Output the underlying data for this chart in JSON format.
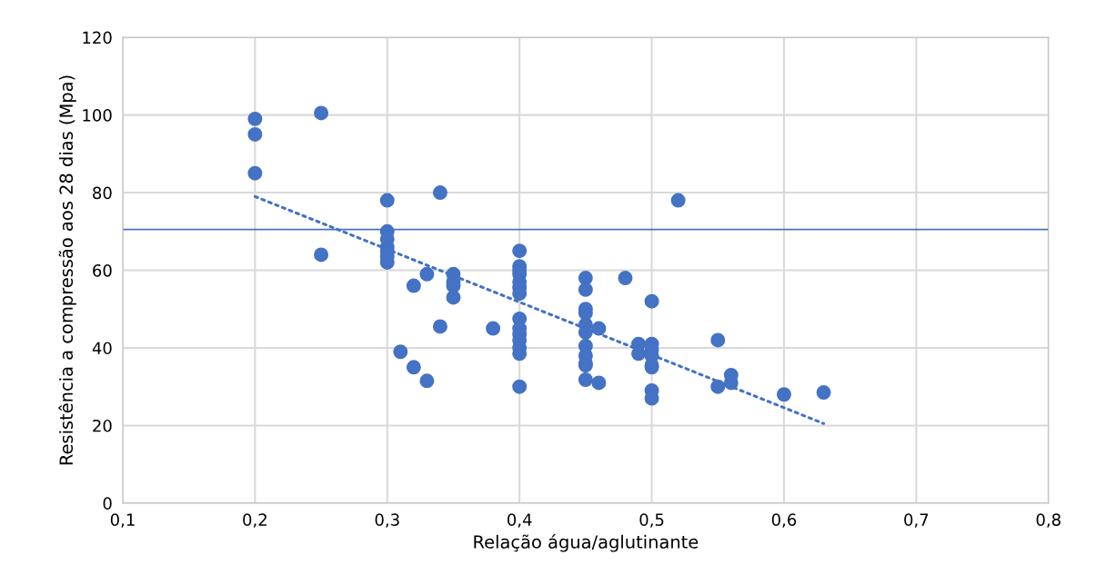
{
  "chart_data": {
    "type": "scatter",
    "xlabel": "Relação água/aglutinante",
    "ylabel": "Resistência a compressão aos 28 dias (Mpa)",
    "xlim": [
      0.1,
      0.8
    ],
    "xticks": [
      {
        "value": 0.1,
        "label": "0,1"
      },
      {
        "value": 0.2,
        "label": "0,2"
      },
      {
        "value": 0.3,
        "label": "0,3"
      },
      {
        "value": 0.4,
        "label": "0,4"
      },
      {
        "value": 0.5,
        "label": "0,5"
      },
      {
        "value": 0.6,
        "label": "0,6"
      },
      {
        "value": 0.7,
        "label": "0,7"
      },
      {
        "value": 0.8,
        "label": "0,8"
      }
    ],
    "ylim": [
      0,
      120
    ],
    "yticks": [
      0,
      20,
      40,
      60,
      80,
      100,
      120
    ],
    "grid": true,
    "series": [
      {
        "marker": "circle",
        "color": "#4472c4",
        "x": [
          0.2,
          0.2,
          0.2,
          0.25,
          0.25,
          0.3,
          0.3,
          0.3,
          0.3,
          0.3,
          0.3,
          0.3,
          0.31,
          0.32,
          0.32,
          0.33,
          0.33,
          0.34,
          0.34,
          0.35,
          0.35,
          0.35,
          0.35,
          0.38,
          0.4,
          0.4,
          0.4,
          0.4,
          0.4,
          0.4,
          0.4,
          0.4,
          0.4,
          0.4,
          0.4,
          0.4,
          0.4,
          0.4,
          0.45,
          0.45,
          0.45,
          0.45,
          0.45,
          0.45,
          0.45,
          0.45,
          0.45,
          0.45,
          0.45,
          0.46,
          0.46,
          0.48,
          0.49,
          0.49,
          0.5,
          0.5,
          0.5,
          0.5,
          0.5,
          0.5,
          0.5,
          0.5,
          0.52,
          0.55,
          0.55,
          0.56,
          0.56,
          0.6,
          0.63
        ],
        "values": [
          99,
          95,
          85,
          100.5,
          64,
          78,
          70,
          68,
          66,
          65,
          63.5,
          62,
          39,
          56,
          35,
          59,
          31.5,
          80,
          45.5,
          59,
          57,
          56,
          53,
          45,
          65,
          61,
          60,
          59,
          57,
          55.5,
          54,
          47.5,
          45,
          43.5,
          42,
          40,
          38.5,
          30,
          58,
          55,
          50,
          49,
          46,
          44,
          40.5,
          38,
          36,
          35.5,
          31.8,
          45,
          31,
          58,
          41,
          38.5,
          52,
          41,
          39.5,
          38,
          35.5,
          35,
          29,
          27,
          78,
          42,
          30,
          33,
          31,
          28,
          28.5
        ]
      },
      {
        "type": "line",
        "color": "#4472c4",
        "line_style": "dotted",
        "x": [
          0.2,
          0.63
        ],
        "values": [
          79,
          20.5
        ]
      }
    ],
    "ref_lines": [
      {
        "axis": "y",
        "value": 70.5,
        "color": "#4472c4",
        "line_style": "solid"
      }
    ]
  }
}
